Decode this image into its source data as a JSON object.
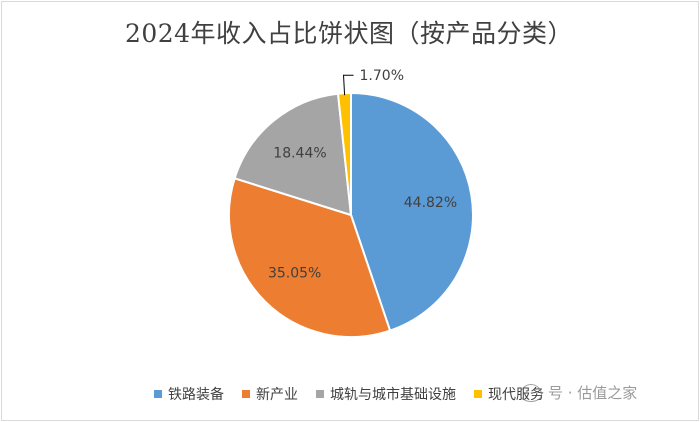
{
  "chart_data": {
    "type": "pie",
    "title": "2024年收入占比饼状图（按产品分类）",
    "categories": [
      "铁路装备",
      "新产业",
      "城轨与城市基础设施",
      "现代服务"
    ],
    "values": [
      44.82,
      35.05,
      18.44,
      1.7
    ],
    "data_labels": [
      "44.82%",
      "35.05%",
      "18.44%",
      "1.70%"
    ],
    "colors": [
      "#5b9bd5",
      "#ed7d31",
      "#a5a5a5",
      "#ffc000"
    ],
    "legend_position": "bottom",
    "start_angle_deg": 0,
    "direction": "clockwise"
  },
  "watermark": {
    "text": "号 · 估值之家",
    "icon": "wechat-icon"
  }
}
